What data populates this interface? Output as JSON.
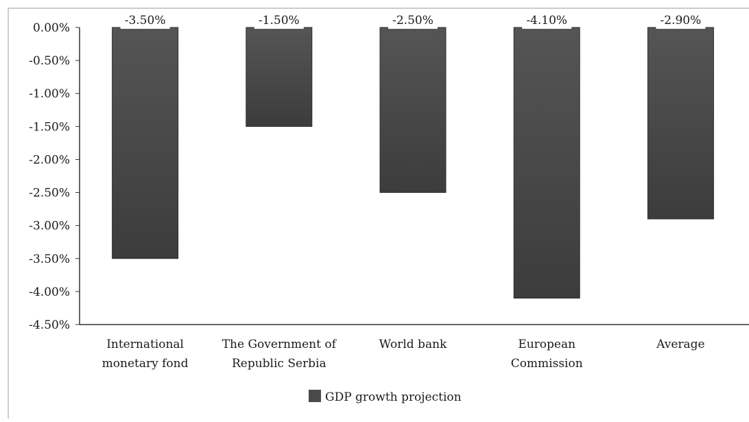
{
  "chart_data": {
    "type": "bar",
    "title": "",
    "xlabel": "",
    "ylabel": "",
    "categories": [
      [
        "International",
        "monetary fond"
      ],
      [
        "The Government of",
        "Republic Serbia"
      ],
      [
        "World bank"
      ],
      [
        "European",
        "Commission"
      ],
      [
        "Average"
      ]
    ],
    "series": [
      {
        "name": "GDP growth projection",
        "values": [
          -3.5,
          -1.5,
          -2.5,
          -4.1,
          -2.9
        ],
        "labels": [
          "-3.50%",
          "-1.50%",
          "-2.50%",
          "-4.10%",
          "-2.90%"
        ]
      }
    ],
    "ylim": [
      -4.5,
      0
    ],
    "y_ticks": [
      0,
      -0.5,
      -1.0,
      -1.5,
      -2.0,
      -2.5,
      -3.0,
      -3.5,
      -4.0,
      -4.5
    ],
    "y_tick_labels": [
      "0.00%",
      "-0.50%",
      "-1.00%",
      "-1.50%",
      "-2.00%",
      "-2.50%",
      "-3.00%",
      "-3.50%",
      "-4.00%",
      "-4.50%"
    ],
    "grid": false,
    "legend_position": "bottom-center",
    "colors": {
      "bar": "#4a4a4a",
      "bar_dark": "#3a3a3a",
      "axis": "#333333",
      "frame": "#9a9a9a"
    }
  }
}
